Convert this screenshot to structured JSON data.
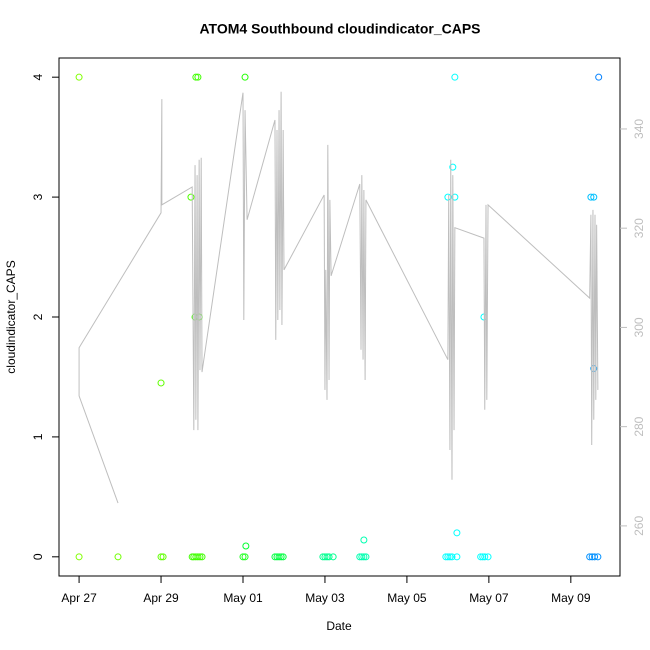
{
  "chart_data": {
    "type": "scatter",
    "title": "ATOM4 Southbound cloudindicator_CAPS",
    "xlabel": "Date",
    "ylabel": "cloudindicator_CAPS",
    "xlim": [
      -0.49,
      13.2
    ],
    "ylim": [
      -0.16,
      4.16
    ],
    "y2lim": [
      249.9,
      354.3
    ],
    "xticks": [
      {
        "value": 0,
        "label": "Apr 27"
      },
      {
        "value": 2,
        "label": "Apr 29"
      },
      {
        "value": 4,
        "label": "May 01"
      },
      {
        "value": 6,
        "label": "May 03"
      },
      {
        "value": 8,
        "label": "May 05"
      },
      {
        "value": 10,
        "label": "May 07"
      },
      {
        "value": 12,
        "label": "May 09"
      }
    ],
    "yticks": [
      0,
      1,
      2,
      3,
      4
    ],
    "y2ticks": [
      260,
      280,
      300,
      320,
      340
    ],
    "y2color": "#bebebe",
    "series": [
      {
        "type": "scatter",
        "x": [
          0,
          0,
          0.95,
          2.0,
          2.0,
          2.05,
          2.73,
          2.83,
          2.93,
          2.85,
          2.9,
          2.76,
          2.8,
          2.85,
          2.9,
          2.95,
          3.0,
          4.05,
          4.07,
          4.0,
          4.05,
          4.78,
          4.83,
          4.88,
          4.93,
          4.98,
          5.95,
          6.0,
          6.05,
          6.1,
          6.2,
          6.95,
          6.85,
          6.9,
          6.95,
          7.0,
          9.0,
          9.12,
          9.17,
          9.17,
          9.22,
          8.95,
          9.0,
          9.05,
          9.1,
          9.22,
          9.88,
          9.8,
          9.85,
          9.9,
          9.98,
          12.49,
          12.56,
          12.56,
          12.68,
          12.46,
          12.52,
          12.58,
          12.66
        ],
        "values": [
          4,
          0,
          0,
          1.45,
          0,
          0,
          3,
          2,
          2,
          4,
          4,
          0,
          0,
          0,
          0,
          0,
          0,
          4,
          0.09,
          0,
          0,
          0,
          0,
          0,
          0,
          0,
          0,
          0,
          0,
          0,
          0,
          0.14,
          0,
          0,
          0,
          0,
          3,
          3.25,
          3,
          4,
          0.2,
          0,
          0,
          0,
          0,
          0,
          2,
          0,
          0,
          0,
          0,
          3,
          3,
          1.57,
          4,
          0,
          0,
          0,
          0
        ],
        "colors": [
          "#80ff00",
          "#80ff00",
          "#70ff00",
          "#60ff00",
          "#60ff00",
          "#60ff00",
          "#50ff00",
          "#40ff00",
          "#40ff00",
          "#40ff00",
          "#40ff00",
          "#40ff00",
          "#40ff00",
          "#40ff00",
          "#40ff00",
          "#40ff00",
          "#40ff00",
          "#20ff00",
          "#00ff30",
          "#20ff20",
          "#20ff20",
          "#00ff40",
          "#00ff40",
          "#00ff40",
          "#00ff40",
          "#00ff40",
          "#00ff90",
          "#00ff90",
          "#00ff90",
          "#00ff90",
          "#00ff90",
          "#00ffb0",
          "#00ffb0",
          "#00ffb0",
          "#00ffb0",
          "#00ffb0",
          "#00ffff",
          "#00ffff",
          "#00ffff",
          "#00ffff",
          "#00ffff",
          "#00ffff",
          "#00ffff",
          "#00ffff",
          "#00ffff",
          "#00ffff",
          "#00ffff",
          "#00ffff",
          "#00ffff",
          "#00ffff",
          "#00ffff",
          "#00c0ff",
          "#00c0ff",
          "#00a0ff",
          "#0080ff",
          "#0090ff",
          "#0090ff",
          "#0090ff",
          "#0090ff"
        ]
      },
      {
        "type": "line",
        "axis": "y2",
        "color": "#bebebe",
        "x": [
          0.95,
          0,
          0,
          2.0,
          2.02,
          2.02,
          2.76,
          2.8,
          2.83,
          2.85,
          2.88,
          2.9,
          2.93,
          2.95,
          2.98,
          3.0,
          4.0,
          4.02,
          4.05,
          4.1,
          4.78,
          4.8,
          4.83,
          4.85,
          4.88,
          4.9,
          4.93,
          4.95,
          4.98,
          5.0,
          5.98,
          6.0,
          6.02,
          6.05,
          6.07,
          6.1,
          6.12,
          6.15,
          6.85,
          6.88,
          6.9,
          6.93,
          6.95,
          6.98,
          7.0,
          9.0,
          9.02,
          9.05,
          9.07,
          9.1,
          9.12,
          9.15,
          9.17,
          9.88,
          9.9,
          9.93,
          9.95,
          9.98,
          12.46,
          12.49,
          12.51,
          12.54,
          12.56,
          12.59,
          12.61,
          12.63,
          12.66
        ],
        "values": [
          264.6,
          286.2,
          295.9,
          323.1,
          346.0,
          324.7,
          328.3,
          279.3,
          332.7,
          281.4,
          330.7,
          279.3,
          333.8,
          291.4,
          334.2,
          291.0,
          347.3,
          301.5,
          343.8,
          321.7,
          341.8,
          297.5,
          339.8,
          301.5,
          343.8,
          303.5,
          347.5,
          300.5,
          339.8,
          311.6,
          326.7,
          287.4,
          311.6,
          285.4,
          336.8,
          289.4,
          325.7,
          310.4,
          328.9,
          295.5,
          330.7,
          293.5,
          327.7,
          289.4,
          325.7,
          293.5,
          326.7,
          275.3,
          333.8,
          269.3,
          330.7,
          279.3,
          320.1,
          318.0,
          283.4,
          324.7,
          285.4,
          324.7,
          305.9,
          322.7,
          276.3,
          323.7,
          281.4,
          322.7,
          285.4,
          320.7,
          287.4
        ]
      }
    ]
  }
}
